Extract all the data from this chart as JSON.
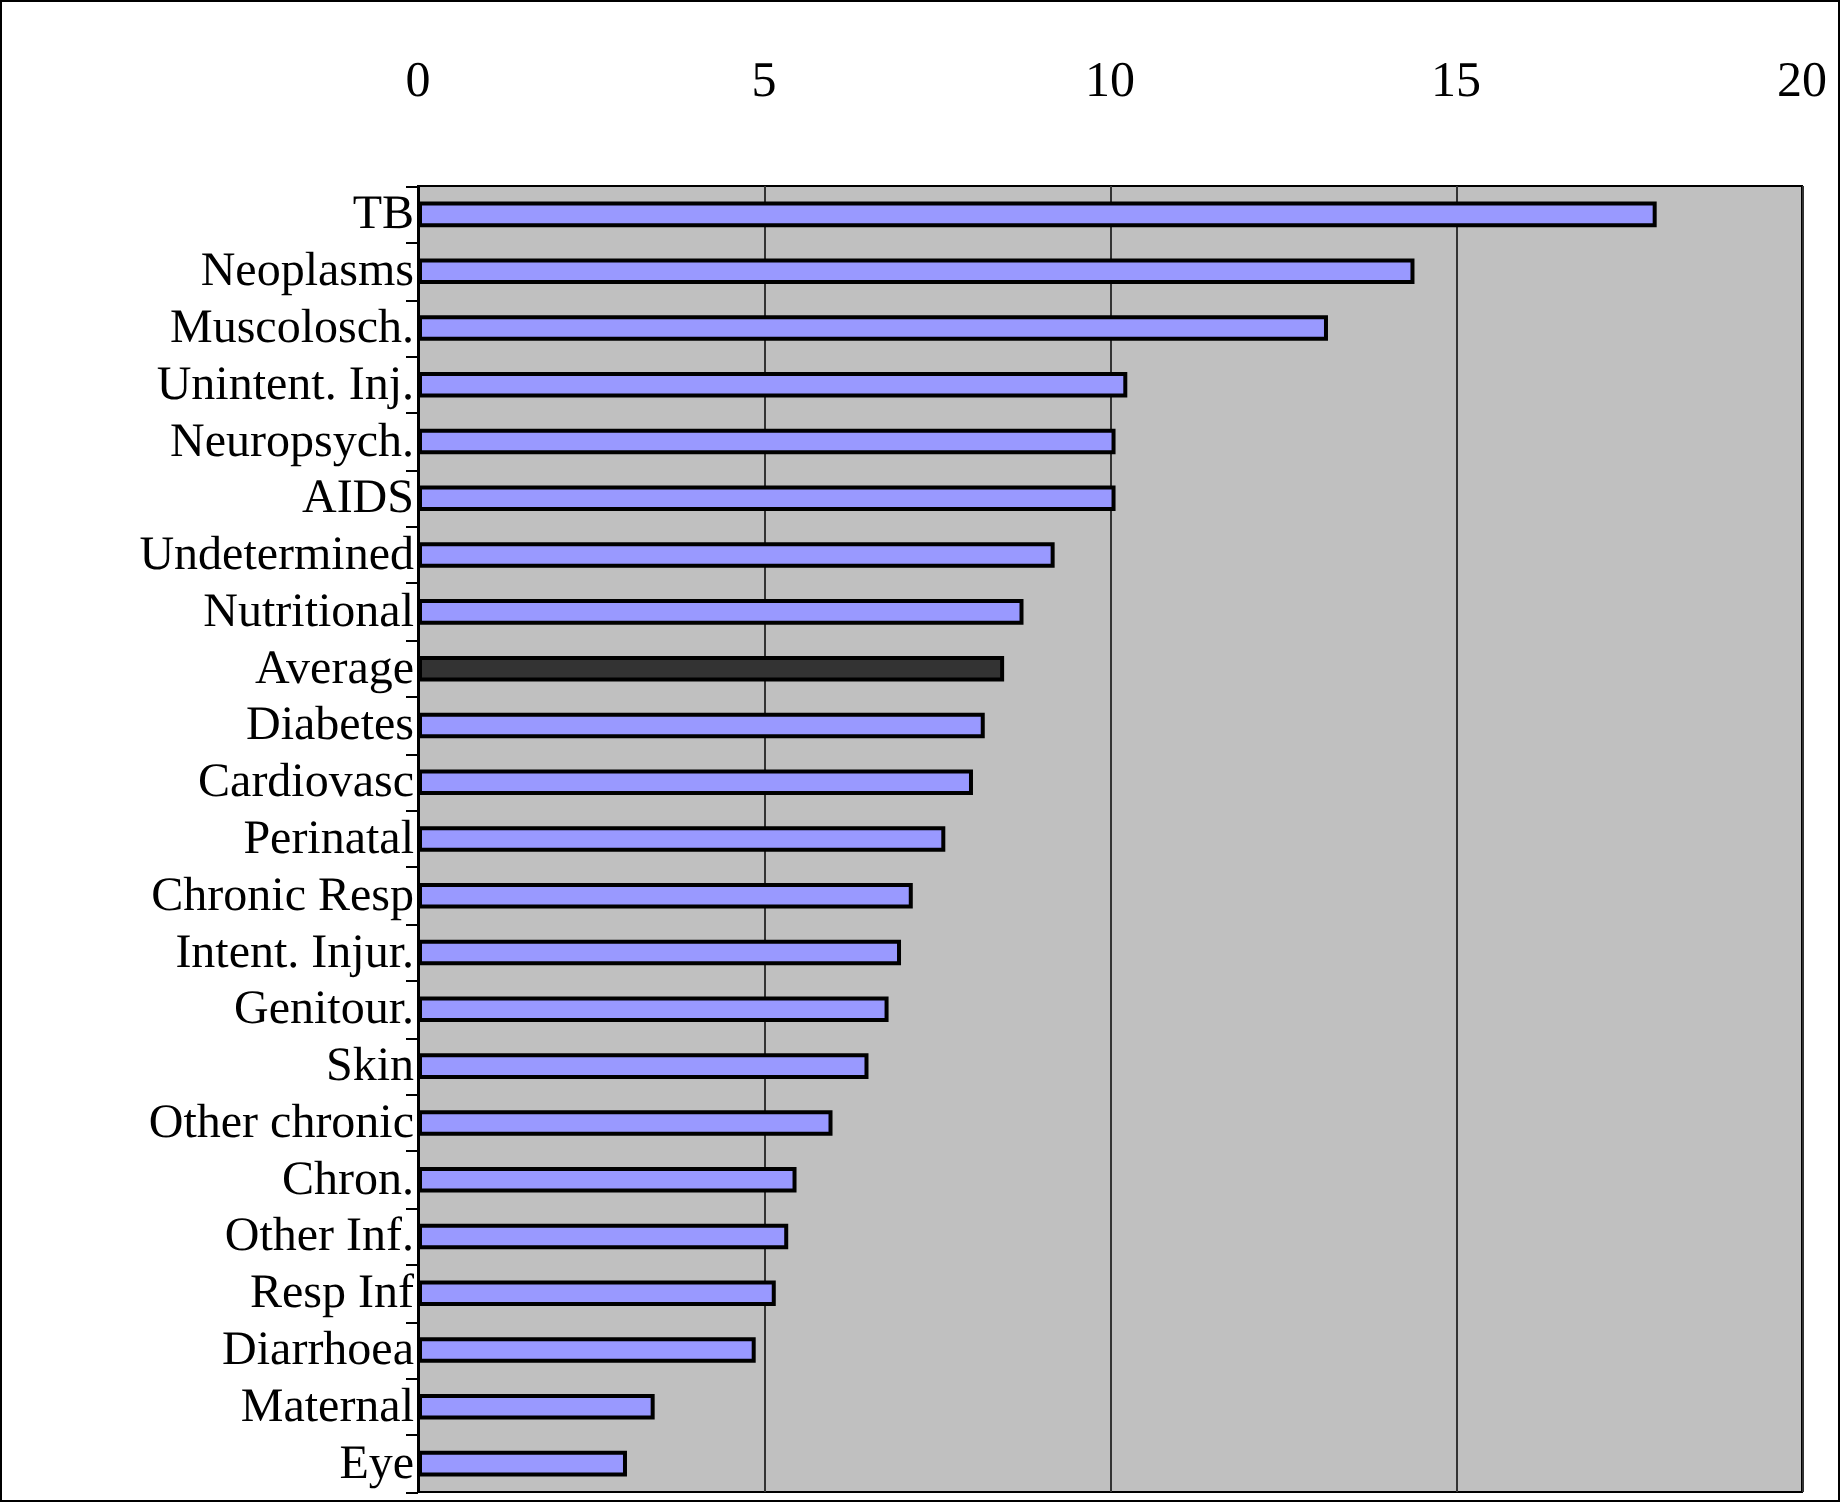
{
  "chart_data": {
    "type": "bar",
    "orientation": "horizontal",
    "categories": [
      "TB",
      "Neoplasms",
      "Muscolosch.",
      "Unintent. Inj.",
      "Neuropsych.",
      "AIDS",
      "Undetermined",
      "Nutritional",
      "Average",
      "Diabetes",
      "Cardiovasc",
      "Perinatal",
      "Chronic Resp",
      "Intent. Injur.",
      "Genitour.",
      "Skin",
      "Other chronic",
      "Chron.",
      "Other Inf.",
      "Resp Inf",
      "Diarrhoea",
      "Maternal",
      "Eye"
    ],
    "values": [
      17.9,
      14.4,
      13.15,
      10.25,
      10.08,
      10.08,
      9.2,
      8.75,
      8.47,
      8.19,
      8.02,
      7.62,
      7.15,
      6.98,
      6.8,
      6.51,
      5.99,
      5.47,
      5.35,
      5.17,
      4.88,
      3.42,
      3.02
    ],
    "colors": [
      "#9999ff",
      "#9999ff",
      "#9999ff",
      "#9999ff",
      "#9999ff",
      "#9999ff",
      "#9999ff",
      "#9999ff",
      "#333333",
      "#9999ff",
      "#9999ff",
      "#9999ff",
      "#9999ff",
      "#9999ff",
      "#9999ff",
      "#9999ff",
      "#9999ff",
      "#9999ff",
      "#9999ff",
      "#9999ff",
      "#9999ff",
      "#9999ff",
      "#9999ff"
    ],
    "xlim": [
      0,
      20
    ],
    "xticks": [
      0,
      5,
      10,
      15,
      20
    ],
    "grid": "x"
  }
}
